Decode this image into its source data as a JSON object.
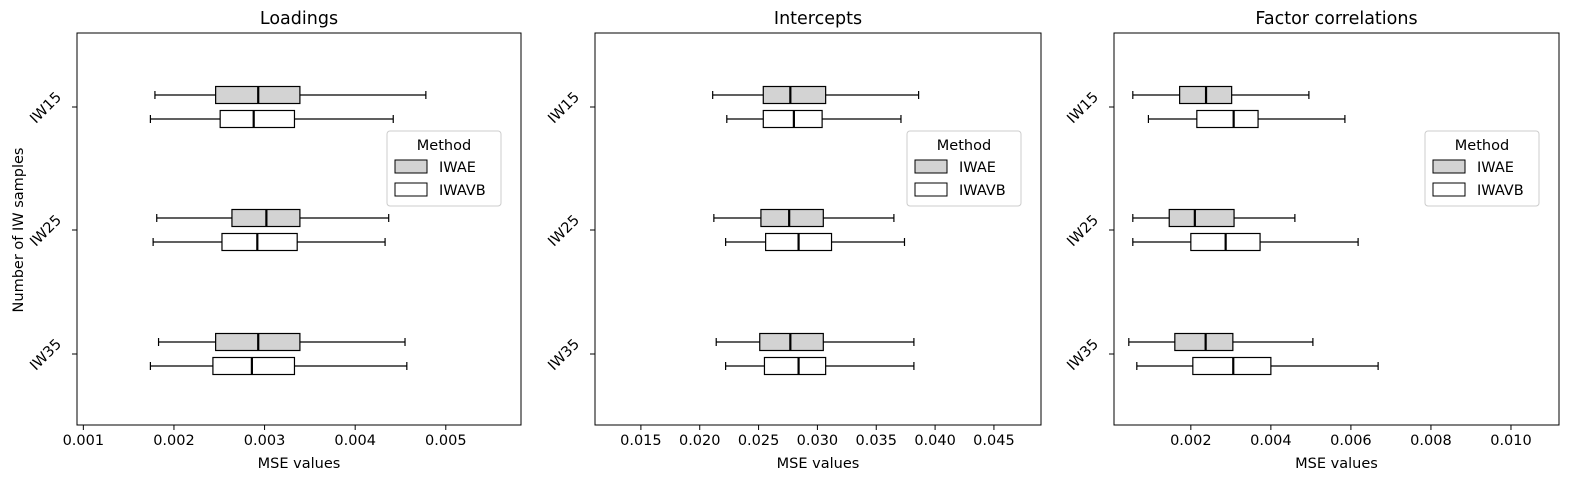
{
  "figure": {
    "shared_ylabel": "Number of IW samples",
    "legend_title": "Method",
    "colors": {
      "IWAE": "#d3d3d3",
      "IWAVB": "#ffffff",
      "stroke": "#000000"
    }
  },
  "chart_data": [
    {
      "type": "boxplot",
      "orientation": "horizontal",
      "title": "Loadings",
      "xlabel": "MSE values",
      "xlim": [
        0.00093,
        0.00583
      ],
      "xticks": [
        0.001,
        0.002,
        0.003,
        0.004,
        0.005
      ],
      "xtick_labels": [
        "0.001",
        "0.002",
        "0.003",
        "0.004",
        "0.005"
      ],
      "categories": [
        "IW15",
        "IW25",
        "IW35"
      ],
      "legend": {
        "title": "Method",
        "entries": [
          "IWAE",
          "IWAVB"
        ],
        "placement": "right"
      },
      "series": [
        {
          "name": "IWAE",
          "boxes": [
            {
              "min": 0.00179,
              "q1": 0.00246,
              "median": 0.00293,
              "q3": 0.00339,
              "max": 0.00478
            },
            {
              "min": 0.00181,
              "q1": 0.00264,
              "median": 0.00302,
              "q3": 0.00339,
              "max": 0.00437
            },
            {
              "min": 0.00183,
              "q1": 0.00246,
              "median": 0.00293,
              "q3": 0.00339,
              "max": 0.00455
            }
          ]
        },
        {
          "name": "IWAVB",
          "boxes": [
            {
              "min": 0.00174,
              "q1": 0.00251,
              "median": 0.00288,
              "q3": 0.00333,
              "max": 0.00442
            },
            {
              "min": 0.00177,
              "q1": 0.00253,
              "median": 0.00292,
              "q3": 0.00336,
              "max": 0.00433
            },
            {
              "min": 0.00174,
              "q1": 0.00243,
              "median": 0.00286,
              "q3": 0.00333,
              "max": 0.00457
            }
          ]
        }
      ]
    },
    {
      "type": "boxplot",
      "orientation": "horizontal",
      "title": "Intercepts",
      "xlabel": "MSE values",
      "xlim": [
        0.0111,
        0.049
      ],
      "xticks": [
        0.015,
        0.02,
        0.025,
        0.03,
        0.035,
        0.04,
        0.045
      ],
      "xtick_labels": [
        "0.015",
        "0.020",
        "0.025",
        "0.030",
        "0.035",
        "0.040",
        "0.045"
      ],
      "categories": [
        "IW15",
        "IW25",
        "IW35"
      ],
      "legend": {
        "title": "Method",
        "entries": [
          "IWAE",
          "IWAVB"
        ],
        "placement": "right"
      },
      "series": [
        {
          "name": "IWAE",
          "boxes": [
            {
              "min": 0.0211,
              "q1": 0.0254,
              "median": 0.0277,
              "q3": 0.0307,
              "max": 0.0386
            },
            {
              "min": 0.0212,
              "q1": 0.0252,
              "median": 0.0276,
              "q3": 0.0305,
              "max": 0.0365
            },
            {
              "min": 0.0214,
              "q1": 0.0251,
              "median": 0.0277,
              "q3": 0.0305,
              "max": 0.0382
            }
          ]
        },
        {
          "name": "IWAVB",
          "boxes": [
            {
              "min": 0.0223,
              "q1": 0.0254,
              "median": 0.028,
              "q3": 0.0304,
              "max": 0.0371
            },
            {
              "min": 0.0222,
              "q1": 0.0256,
              "median": 0.0284,
              "q3": 0.0312,
              "max": 0.0374
            },
            {
              "min": 0.0222,
              "q1": 0.0255,
              "median": 0.0284,
              "q3": 0.0307,
              "max": 0.0382
            }
          ]
        }
      ]
    },
    {
      "type": "boxplot",
      "orientation": "horizontal",
      "title": "Factor correlations",
      "xlabel": "MSE values",
      "xlim": [
        8e-05,
        0.0112
      ],
      "xticks": [
        0.002,
        0.004,
        0.006,
        0.008,
        0.01
      ],
      "xtick_labels": [
        "0.002",
        "0.004",
        "0.006",
        "0.008",
        "0.010"
      ],
      "categories": [
        "IW15",
        "IW25",
        "IW35"
      ],
      "legend": {
        "title": "Method",
        "entries": [
          "IWAE",
          "IWAVB"
        ],
        "placement": "right"
      },
      "series": [
        {
          "name": "IWAE",
          "boxes": [
            {
              "min": 0.00055,
              "q1": 0.00172,
              "median": 0.00238,
              "q3": 0.00302,
              "max": 0.00495
            },
            {
              "min": 0.00055,
              "q1": 0.00146,
              "median": 0.0021,
              "q3": 0.00308,
              "max": 0.0046
            },
            {
              "min": 0.00045,
              "q1": 0.0016,
              "median": 0.00237,
              "q3": 0.00305,
              "max": 0.00505
            }
          ]
        },
        {
          "name": "IWAVB",
          "boxes": [
            {
              "min": 0.00094,
              "q1": 0.00215,
              "median": 0.00307,
              "q3": 0.00368,
              "max": 0.00585
            },
            {
              "min": 0.00055,
              "q1": 0.002,
              "median": 0.00287,
              "q3": 0.00373,
              "max": 0.00618
            },
            {
              "min": 0.00065,
              "q1": 0.00205,
              "median": 0.00306,
              "q3": 0.004,
              "max": 0.00668
            }
          ]
        }
      ]
    }
  ]
}
